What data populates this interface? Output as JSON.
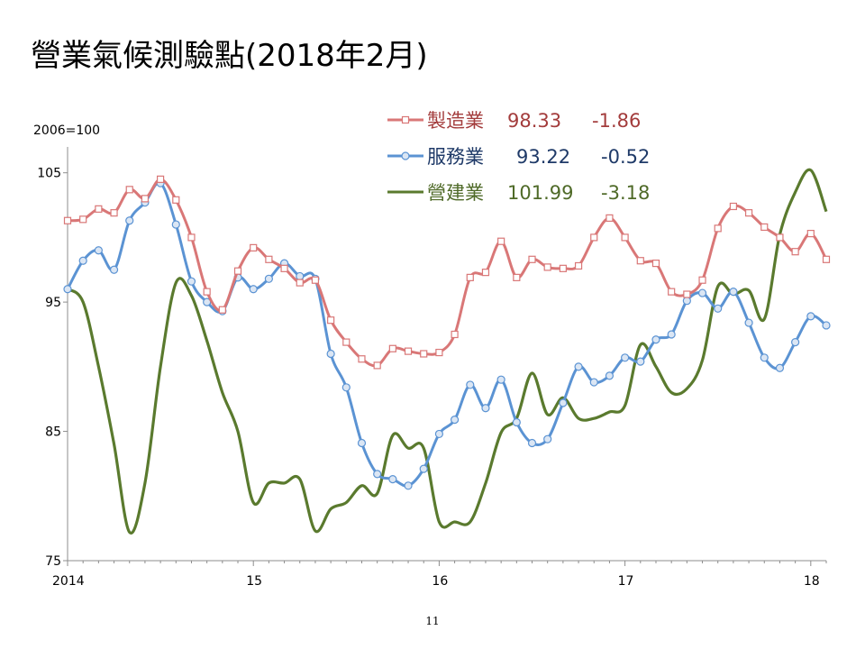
{
  "title": "營業氣候測驗點(2018年2月)",
  "page_number": "11",
  "chart_data": {
    "type": "line",
    "base_label": "2006=100",
    "ylim": [
      75,
      107
    ],
    "yticks": [
      75,
      85,
      95,
      105
    ],
    "xticks": [
      {
        "label": "2014",
        "x": 0
      },
      {
        "label": "15",
        "x": 12
      },
      {
        "label": "16",
        "x": 24
      },
      {
        "label": "17",
        "x": 36
      },
      {
        "label": "18",
        "x": 48
      }
    ],
    "xlim": [
      0,
      49
    ],
    "series": [
      {
        "name": "製造業",
        "value": "98.33",
        "change": "-1.86",
        "color": "#d97777",
        "text_color": "#a33c3c",
        "marker": "square",
        "values": [
          101.3,
          101.4,
          102.2,
          101.9,
          103.7,
          103.0,
          104.5,
          102.9,
          100.0,
          95.8,
          94.4,
          97.4,
          99.2,
          98.3,
          97.6,
          96.5,
          96.7,
          93.6,
          91.9,
          90.6,
          90.1,
          91.4,
          91.2,
          91.0,
          91.1,
          92.5,
          96.9,
          97.3,
          99.7,
          96.9,
          98.3,
          97.7,
          97.6,
          97.8,
          100.0,
          101.5,
          100.0,
          98.2,
          98.0,
          95.8,
          95.6,
          96.7,
          100.7,
          102.4,
          101.9,
          100.8,
          100.0,
          98.9,
          100.3,
          98.3
        ]
      },
      {
        "name": "服務業",
        "value": "93.22",
        "change": "-0.52",
        "color": "#5b93d3",
        "text_color": "#1f3a68",
        "marker": "circle",
        "values": [
          96.0,
          98.2,
          99.0,
          97.5,
          101.3,
          102.7,
          104.2,
          101.0,
          96.6,
          95.0,
          94.3,
          96.9,
          96.0,
          96.8,
          98.0,
          97.0,
          96.8,
          91.0,
          88.4,
          84.1,
          81.7,
          81.3,
          80.8,
          82.1,
          84.8,
          85.9,
          88.6,
          86.8,
          89.0,
          85.7,
          84.1,
          84.4,
          87.2,
          90.0,
          88.8,
          89.3,
          90.7,
          90.4,
          92.1,
          92.5,
          95.1,
          95.7,
          94.5,
          95.8,
          93.4,
          90.7,
          89.9,
          91.9,
          93.9,
          93.2
        ]
      },
      {
        "name": "營建業",
        "value": "101.99",
        "change": "-3.18",
        "color": "#5a7a2e",
        "text_color": "#4f6a28",
        "marker": "none",
        "values": [
          96.0,
          95.0,
          90.0,
          84.0,
          77.2,
          81.0,
          90.0,
          96.5,
          95.5,
          92.0,
          88.0,
          85.0,
          79.5,
          81.0,
          81.0,
          81.3,
          77.3,
          79.0,
          79.5,
          80.8,
          80.2,
          84.7,
          83.7,
          83.7,
          78.0,
          78.0,
          78.0,
          81.0,
          84.9,
          86.0,
          89.5,
          86.3,
          87.6,
          86.0,
          86.0,
          86.5,
          87.0,
          91.7,
          90.0,
          88.0,
          88.3,
          90.5,
          96.2,
          95.6,
          95.9,
          93.7,
          100.2,
          103.5,
          105.2,
          102.0
        ]
      }
    ]
  }
}
